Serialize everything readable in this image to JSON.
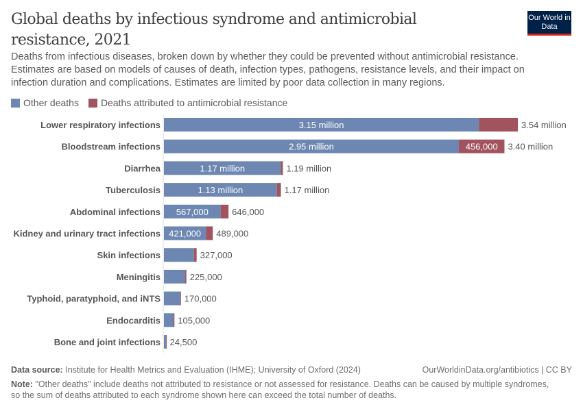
{
  "header": {
    "title": "Global deaths by infectious syndrome and antimicrobial resistance, 2021",
    "logo": "Our World in Data",
    "subtitle": "Deaths from infectious diseases, broken down by whether they could be prevented without antimicrobial resistance. Estimates are based on models of causes of death, infection types, pathogens, resistance levels, and their impact on infection duration and complications. Estimates are limited by poor data collection in many regions."
  },
  "chart_data": {
    "type": "bar",
    "orientation": "horizontal",
    "stacked": true,
    "categories": [
      "Lower respiratory infections",
      "Bloodstream infections",
      "Diarrhea",
      "Tuberculosis",
      "Abdominal infections",
      "Kidney and urinary tract infections",
      "Skin infections",
      "Meningitis",
      "Typhoid, paratyphoid, and iNTS",
      "Endocarditis",
      "Bone and joint infections"
    ],
    "series": [
      {
        "name": "Other deaths",
        "color": "#6d87b2",
        "values": [
          3150000,
          2950000,
          1170000,
          1130000,
          567000,
          421000,
          300000,
          213000,
          165000,
          96000,
          23500
        ],
        "labels": [
          "3.15 million",
          "2.95 million",
          "1.17 million",
          "1.13 million",
          "567,000",
          "421,000",
          "",
          "",
          "",
          "",
          ""
        ]
      },
      {
        "name": "Deaths attributed to antimicrobial resistance",
        "color": "#a2545e",
        "values": [
          390000,
          456000,
          20000,
          40000,
          79000,
          68000,
          27000,
          12000,
          5000,
          9000,
          1000
        ],
        "labels": [
          "",
          "456,000",
          "",
          "",
          "",
          "",
          "",
          "",
          "",
          "",
          ""
        ]
      }
    ],
    "totals": [
      "3.54 million",
      "3.40 million",
      "1.19 million",
      "1.17 million",
      "646,000",
      "489,000",
      "327,000",
      "225,000",
      "170,000",
      "105,000",
      "24,500"
    ],
    "xlim": [
      0,
      3540000
    ],
    "grid": false,
    "legend": "top-left"
  },
  "footer": {
    "source_label": "Data source:",
    "source": "Institute for Health Metrics and Evaluation (IHME); University of Oxford (2024)",
    "url": "OurWorldinData.org/antibiotics | CC BY",
    "note_label": "Note:",
    "note": "\"Other deaths\" include deaths not attributed to resistance or not assessed for resistance. Deaths can be caused by multiple syndromes, so the sum of deaths attributed to each syndrome shown here can exceed the total number of deaths."
  }
}
